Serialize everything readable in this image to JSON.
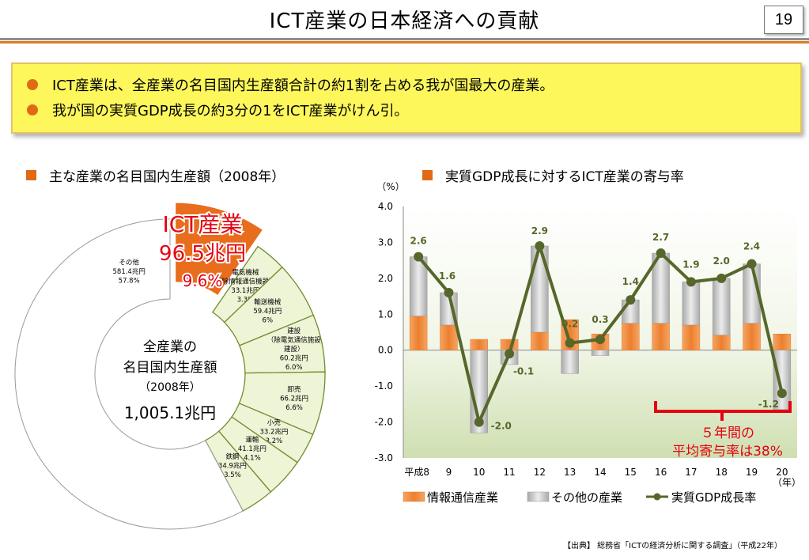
{
  "slide": {
    "title": "ICT産業の日本経済への貢献",
    "page_number": "19"
  },
  "summary": {
    "points": [
      "ICT産業は、全産業の名目国内生産額合計の約1割を占める我が国最大の産業。",
      "我が国の実質GDP成長の約3分の1をICT産業がけん引。"
    ]
  },
  "left_chart": {
    "heading": "主な産業の名目国内生産額（2008年）",
    "center_label": {
      "line1": "全産業の",
      "line2": "名目国内生産額",
      "line3": "（2008年）",
      "total": "1,005.1兆円"
    },
    "highlight": {
      "line1": "ICT産業",
      "line2": "96.5兆円",
      "line3": "9.6%"
    }
  },
  "right_chart": {
    "heading": "実質GDP成長に対するICT産業の寄与率",
    "y_unit": "（%）",
    "x_unit": "（年）",
    "callout": {
      "line1": "５年間の",
      "line2": "平均寄与率は38%"
    }
  },
  "source": "【出典】 総務省「ICTの経済分析に関する調査」（平成22年）",
  "colors": {
    "accent_orange": "#e86d1c",
    "donut_green": "#eef4d6",
    "ict_bar": "#ee8a3c",
    "other_bar": "#c9c9c9",
    "growth_line": "#55672a",
    "callout_red": "#e60012",
    "summary_bg": "#fdf75c"
  },
  "chart_data": [
    {
      "type": "pie",
      "categories": [
        "ICT産業",
        "電気機械（除情報通信機器）",
        "輸送機械",
        "建設（除電気通信施設建設）",
        "卸売",
        "小売",
        "運輸",
        "鉄鋼",
        "その他"
      ],
      "values": [
        96.5,
        33.1,
        59.4,
        60.2,
        66.2,
        33.2,
        41.1,
        34.9,
        581.4
      ],
      "percent_labels": [
        "9.6%",
        "3.3%",
        "6%",
        "6.0%",
        "6.6%",
        "3.2%",
        "4.1%",
        "3.5%",
        "57.8%"
      ],
      "slice_labels": [
        [
          "ICT産業",
          "96.5兆円",
          "9.6%"
        ],
        [
          "電気機械",
          "（除情報通信機器）",
          "33.1兆円",
          "3.3%"
        ],
        [
          "輸送機械",
          "59.4兆円",
          "6%"
        ],
        [
          "建設",
          "（除電気通信施設",
          "建設）",
          "60.2兆円",
          "6.0%"
        ],
        [
          "卸売",
          "66.2兆円",
          "6.6%"
        ],
        [
          "小売",
          "33.2兆円",
          "3.2%"
        ],
        [
          "運輸",
          "41.1兆円",
          "4.1%"
        ],
        [
          "鉄鋼",
          "34.9兆円",
          "3.5%"
        ],
        [
          "その他",
          "581.4兆円",
          "57.8%"
        ]
      ],
      "unit": "兆円",
      "total": 1005.1,
      "title": "主な産業の名目国内生産額（2008年）"
    },
    {
      "type": "bar",
      "stacked": true,
      "categories": [
        "平成8",
        "9",
        "10",
        "11",
        "12",
        "13",
        "14",
        "15",
        "16",
        "17",
        "18",
        "19",
        "20"
      ],
      "series": [
        {
          "name": "情報通信産業",
          "values": [
            0.95,
            0.7,
            0.3,
            0.3,
            0.5,
            0.85,
            0.45,
            0.75,
            0.75,
            0.7,
            0.42,
            0.75,
            0.45
          ]
        },
        {
          "name": "その他の産業",
          "values": [
            1.65,
            0.9,
            -2.3,
            -0.4,
            2.4,
            -0.65,
            -0.15,
            0.65,
            1.95,
            1.2,
            1.58,
            1.65,
            -1.65
          ]
        }
      ],
      "line_series": {
        "name": "実質GDP成長率",
        "values": [
          2.6,
          1.6,
          -2.0,
          -0.1,
          2.9,
          0.2,
          0.3,
          1.4,
          2.7,
          1.9,
          2.0,
          2.4,
          -1.2
        ]
      },
      "line_value_labels": [
        "2.6",
        "1.6",
        "-2.0",
        "-0.1",
        "2.9",
        "0.2",
        "0.3",
        "1.4",
        "2.7",
        "1.9",
        "2.0",
        "2.4",
        "-1.2"
      ],
      "y_ticks": [
        "4.0",
        "3.0",
        "2.0",
        "1.0",
        "0.0",
        "-1.0",
        "-2.0",
        "-3.0"
      ],
      "ylim": [
        -3.0,
        4.0
      ],
      "ylabel": "（%）",
      "xlabel": "（年）",
      "legend": [
        "情報通信産業",
        "その他の産業",
        "実質GDP成長率"
      ],
      "legend_position": "bottom",
      "title": "実質GDP成長に対するICT産業の寄与率"
    }
  ]
}
